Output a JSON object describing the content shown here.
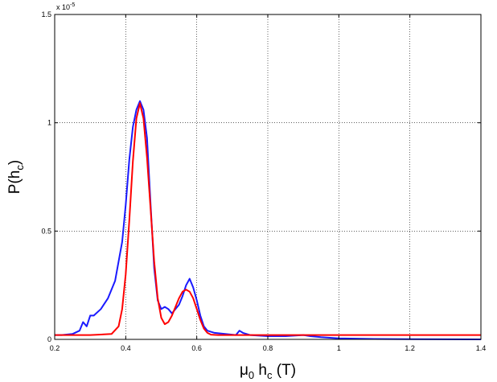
{
  "chart_data": {
    "type": "line",
    "xlabel": {
      "mu": "μ",
      "mu_sub": "0",
      "h": " h",
      "h_sub": "c",
      "unit": " (T)"
    },
    "ylabel": {
      "p": "P(h",
      "sub": "c",
      "close": ")"
    },
    "y_multiplier": {
      "base": "x 10",
      "exponent": "-5"
    },
    "xlim": [
      0.2,
      1.4
    ],
    "ylim": [
      0,
      1.5e-05
    ],
    "xticks": [
      0.2,
      0.4,
      0.6,
      0.8,
      1.0,
      1.2,
      1.4
    ],
    "xtick_labels": [
      "0.2",
      "0.4",
      "0.6",
      "0.8",
      "1",
      "1.2",
      "1.4"
    ],
    "yticks": [
      0,
      5e-06,
      1e-05,
      1.5e-05
    ],
    "ytick_labels": [
      "0",
      "0.5",
      "1",
      "1.5"
    ],
    "grid": true,
    "colors": {
      "data": "#1a1aff",
      "fit": "#ff0000"
    },
    "series": [
      {
        "style": "blue",
        "x": [
          0.2,
          0.22,
          0.25,
          0.27,
          0.28,
          0.29,
          0.3,
          0.31,
          0.33,
          0.35,
          0.37,
          0.39,
          0.4,
          0.41,
          0.42,
          0.43,
          0.44,
          0.45,
          0.46,
          0.47,
          0.48,
          0.49,
          0.5,
          0.51,
          0.52,
          0.53,
          0.54,
          0.55,
          0.56,
          0.57,
          0.58,
          0.59,
          0.6,
          0.61,
          0.62,
          0.63,
          0.65,
          0.68,
          0.71,
          0.72,
          0.73,
          0.75,
          0.8,
          0.85,
          0.9,
          0.92,
          0.95,
          1.0,
          1.1,
          1.2,
          1.4
        ],
        "y": [
          2e-07,
          2e-07,
          2.5e-07,
          4e-07,
          8e-07,
          6e-07,
          1.1e-06,
          1.1e-06,
          1.4e-06,
          1.9e-06,
          2.7e-06,
          4.5e-06,
          6.2e-06,
          8.3e-06,
          9.8e-06,
          1.06e-05,
          1.1e-05,
          1.06e-05,
          9.3e-06,
          6.2e-06,
          3.3e-06,
          1.8e-06,
          1.4e-06,
          1.5e-06,
          1.4e-06,
          1.2e-06,
          1.4e-06,
          1.6e-06,
          2e-06,
          2.5e-06,
          2.8e-06,
          2.4e-06,
          1.8e-06,
          1.1e-06,
          6e-07,
          4e-07,
          3e-07,
          2.5e-07,
          2e-07,
          4e-07,
          3e-07,
          2e-07,
          1.5e-07,
          1.5e-07,
          2e-07,
          1.5e-07,
          1e-07,
          5e-08,
          2e-08,
          1e-08,
          0.0
        ]
      },
      {
        "style": "red",
        "x": [
          0.2,
          0.3,
          0.36,
          0.38,
          0.39,
          0.4,
          0.41,
          0.42,
          0.43,
          0.44,
          0.45,
          0.46,
          0.47,
          0.48,
          0.49,
          0.5,
          0.51,
          0.52,
          0.53,
          0.54,
          0.55,
          0.56,
          0.57,
          0.58,
          0.59,
          0.6,
          0.61,
          0.62,
          0.63,
          0.64,
          0.66,
          0.7,
          1.0,
          1.4
        ],
        "y": [
          2e-07,
          2e-07,
          2.5e-07,
          6e-07,
          1.4e-06,
          3e-06,
          5.5e-06,
          8.2e-06,
          1.02e-05,
          1.09e-05,
          1.02e-05,
          8.4e-06,
          6e-06,
          3.6e-06,
          1.9e-06,
          1e-06,
          7e-07,
          8e-07,
          1.1e-06,
          1.5e-06,
          1.9e-06,
          2.2e-06,
          2.3e-06,
          2.2e-06,
          1.9e-06,
          1.4e-06,
          9e-07,
          5e-07,
          3e-07,
          2.2e-07,
          2e-07,
          2e-07,
          2e-07,
          2e-07
        ]
      }
    ]
  }
}
